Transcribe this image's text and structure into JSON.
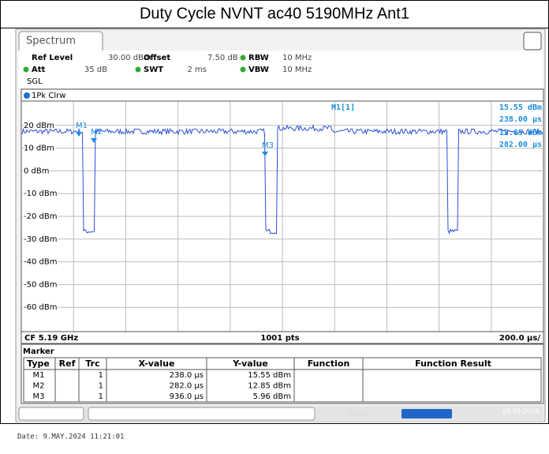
{
  "header": {
    "title": "Duty Cycle NVNT ac40 5190MHz Ant1"
  },
  "panel": {
    "tab": "Spectrum",
    "row1": [
      "Ref Level",
      "30.00 dBm",
      "Offset",
      "7.50 dB",
      "RBW",
      "10 MHz"
    ],
    "row2": [
      "Att",
      "35 dB",
      "SWT",
      "2 ms",
      "VBW",
      "10 MHz"
    ],
    "mode": "SGL"
  },
  "plot": {
    "trace": "1Pk Clrw",
    "y_labels": [
      "20 dBm",
      "10 dBm",
      "0 dBm",
      "-10 dBm",
      "-20 dBm",
      "-30 dBm",
      "-40 dBm",
      "-50 dBm",
      "-60 dBm"
    ],
    "markers": [
      "M1",
      "M2",
      "M3"
    ],
    "readout": [
      "M1[1]",
      "15.55 dBm",
      "238.00 µs",
      "12.85 dBm",
      "282.00 µs"
    ],
    "footer": [
      "CF 5.19 GHz",
      "1001 pts",
      "200.0 µs/"
    ]
  },
  "table": {
    "caption": "Marker",
    "columns": [
      "Type",
      "Ref",
      "Trc",
      "X-value",
      "Y-value",
      "Function",
      "Function Result"
    ],
    "rows": [
      {
        "type": "M1",
        "trc": "1",
        "x": "238.0 µs",
        "y": "15.55 dBm"
      },
      {
        "type": "M2",
        "trc": "1",
        "x": "282.0 µs",
        "y": "12.85 dBm"
      },
      {
        "type": "M3",
        "trc": "1",
        "x": "936.0 µs",
        "y": "5.96 dBm"
      }
    ]
  },
  "status": {
    "ready": "Ready",
    "date": "09.05.2024"
  },
  "footer": "Date: 9.MAY.2024  11:21:01"
}
